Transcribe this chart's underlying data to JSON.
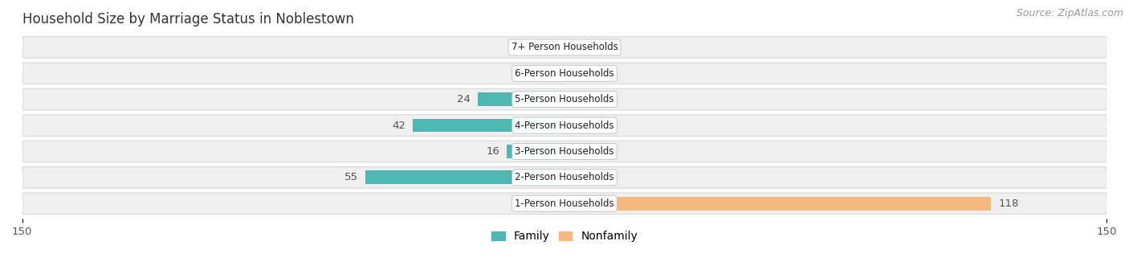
{
  "title": "Household Size by Marriage Status in Noblestown",
  "source": "Source: ZipAtlas.com",
  "categories": [
    "7+ Person Households",
    "6-Person Households",
    "5-Person Households",
    "4-Person Households",
    "3-Person Households",
    "2-Person Households",
    "1-Person Households"
  ],
  "family": [
    0,
    0,
    24,
    42,
    16,
    55,
    0
  ],
  "nonfamily": [
    0,
    0,
    0,
    0,
    0,
    0,
    118
  ],
  "family_color": "#4db8b2",
  "nonfamily_color": "#f5b97f",
  "row_bg_color": "#efefef",
  "row_border_color": "#d8d8d8",
  "xlim": 150,
  "label_color": "#555555",
  "title_fontsize": 12,
  "source_fontsize": 9,
  "tick_fontsize": 9.5,
  "cat_fontsize": 8.5,
  "legend_fontsize": 10,
  "bar_height": 0.52,
  "stub_size": 8,
  "background_color": "#ffffff"
}
